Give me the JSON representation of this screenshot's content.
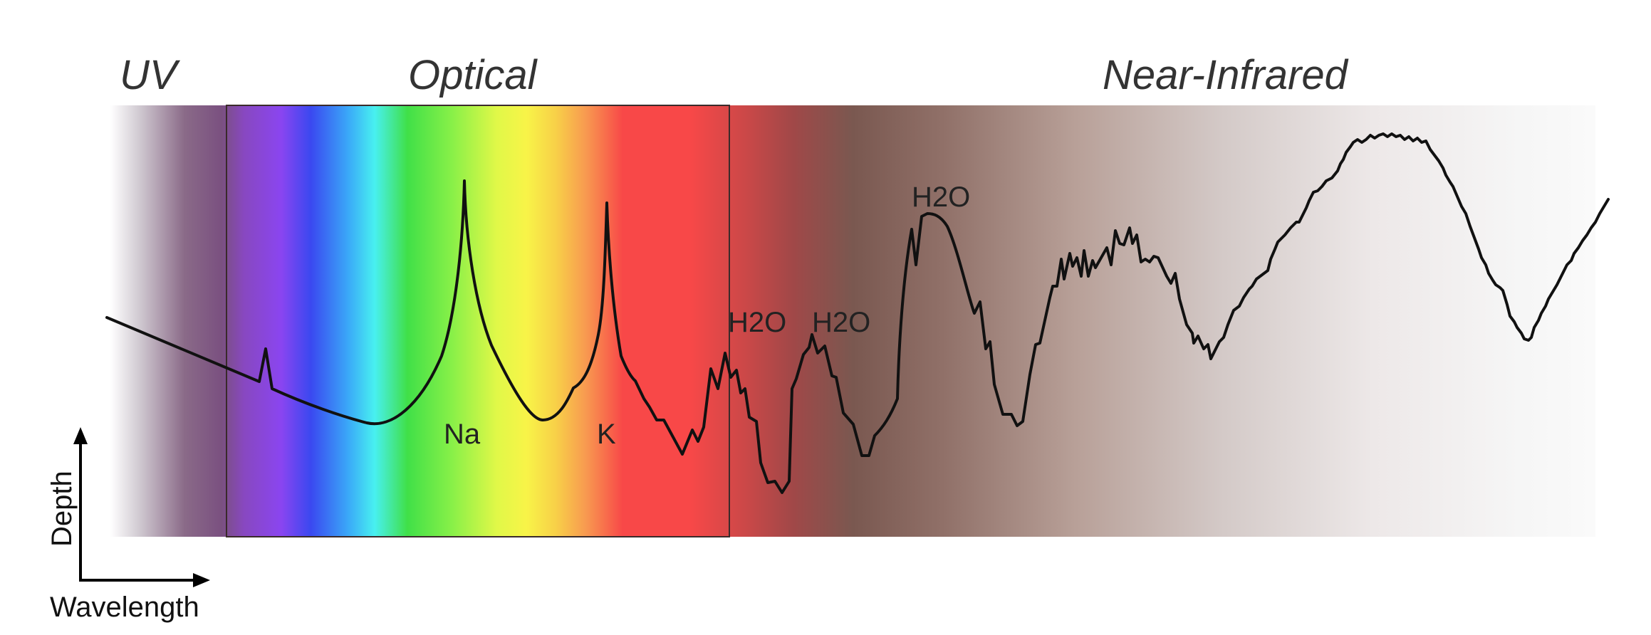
{
  "regions": {
    "uv": "UV",
    "optical": "Optical",
    "near_infrared": "Near-Infrared"
  },
  "line_labels": {
    "na": "Na",
    "k": "K",
    "h2o_1": "H2O",
    "h2o_2": "H2O",
    "h2o_3": "H2O"
  },
  "axes": {
    "x_label": "Wavelength",
    "y_label": "Depth"
  },
  "colors": {
    "spectrum_line": "#111111",
    "optical_box_border": "#3a2a2a",
    "violet": "#8a45c8",
    "blue": "#3a55f2",
    "cyan": "#45ecf0",
    "green": "#40e040",
    "yellow": "#f8f440",
    "orange": "#f8a050",
    "red": "#f84848",
    "dark_red": "#a04040",
    "brown": "#806058",
    "fade": "#f2f2f2"
  }
}
